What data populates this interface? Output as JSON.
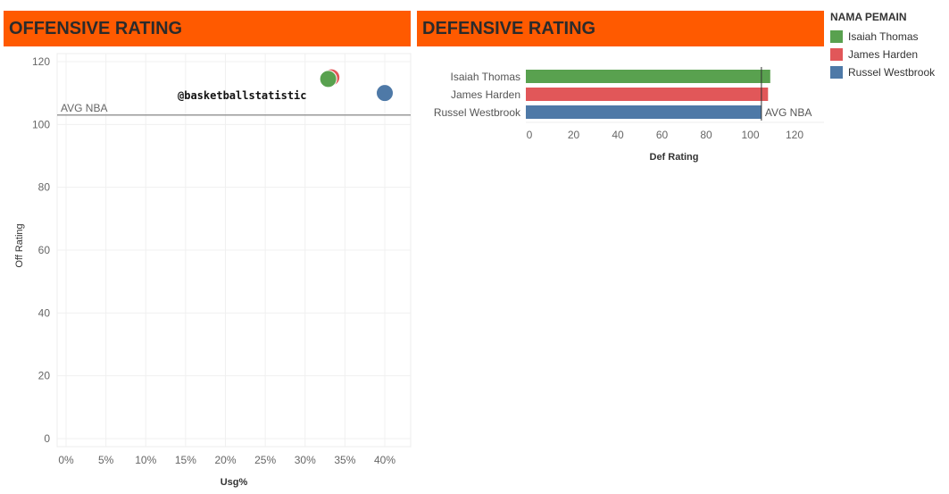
{
  "colors": {
    "header": "#ff5a00",
    "isaiah": "#59a14f",
    "harden": "#e15759",
    "westbrook": "#4e79a7",
    "avg_line": "#999999"
  },
  "watermark": "@basketballstatistic",
  "legend": {
    "title": "NAMA PEMAIN",
    "items": [
      {
        "label": "Isaiah Thomas",
        "color": "#59a14f"
      },
      {
        "label": "James Harden",
        "color": "#e15759"
      },
      {
        "label": "Russel Westbrook",
        "color": "#4e79a7"
      }
    ]
  },
  "chart_data": [
    {
      "type": "scatter",
      "title": "OFFENSIVE RATING",
      "xlabel": "Usg%",
      "ylabel": "Off Rating",
      "x_ticks": [
        "0%",
        "5%",
        "10%",
        "15%",
        "20%",
        "25%",
        "30%",
        "35%",
        "40%"
      ],
      "y_ticks": [
        "0",
        "20",
        "40",
        "60",
        "80",
        "100",
        "120"
      ],
      "xlim": [
        0,
        42
      ],
      "ylim": [
        0,
        122
      ],
      "grid": true,
      "series": [
        {
          "name": "James Harden",
          "x": 33.3,
          "y": 115.0,
          "color": "#e15759"
        },
        {
          "name": "Isaiah Thomas",
          "x": 32.9,
          "y": 114.5,
          "color": "#59a14f"
        },
        {
          "name": "Russel Westbrook",
          "x": 40.0,
          "y": 110.0,
          "color": "#4e79a7"
        }
      ],
      "reference_line": {
        "label": "AVG NBA",
        "value": 103
      }
    },
    {
      "type": "bar",
      "orientation": "horizontal",
      "title": "DEFENSIVE RATING",
      "xlabel": "Def Rating",
      "categories": [
        "Isaiah Thomas",
        "James Harden",
        "Russel Westbrook"
      ],
      "values": [
        109,
        108,
        105
      ],
      "colors": [
        "#59a14f",
        "#e15759",
        "#4e79a7"
      ],
      "x_ticks": [
        "0",
        "20",
        "40",
        "60",
        "80",
        "100",
        "120"
      ],
      "xlim": [
        0,
        130
      ],
      "reference_line": {
        "label": "AVG NBA",
        "value": 105
      }
    }
  ]
}
